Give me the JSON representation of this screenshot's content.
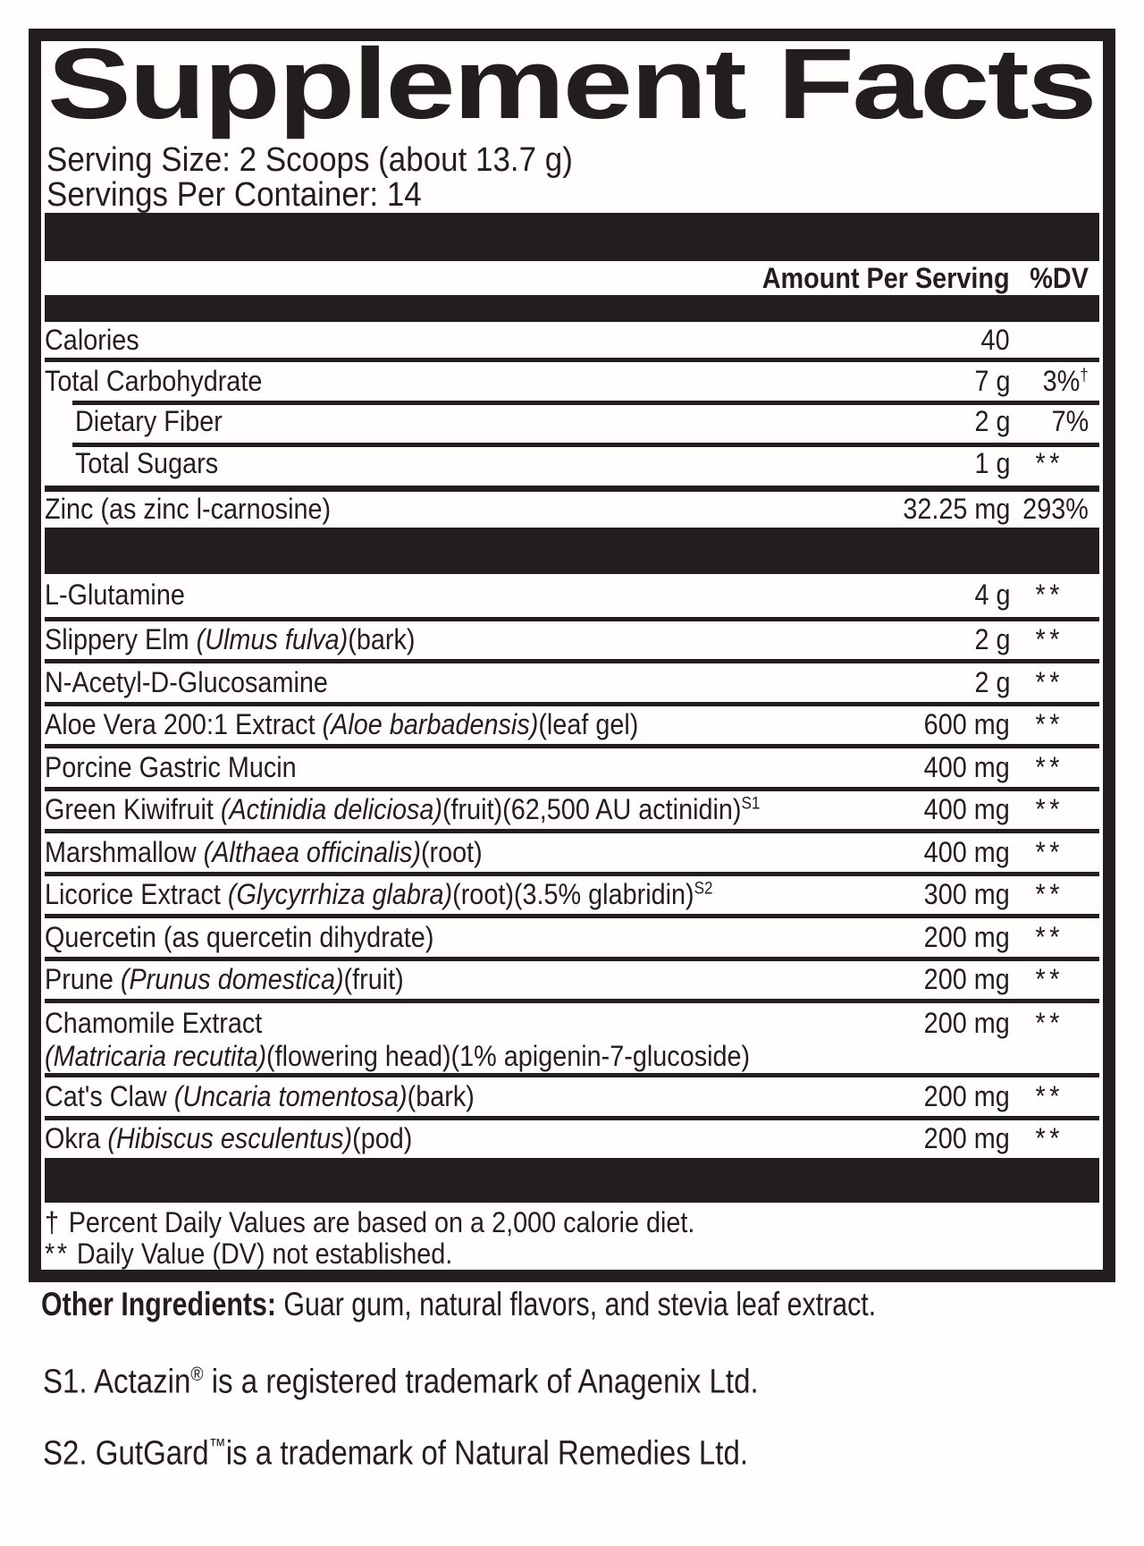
{
  "title": "Supplement Facts",
  "serving": {
    "size": "Serving Size: 2 Scoops (about 13.7 g)",
    "per_container": "Servings Per Container: 14"
  },
  "header": {
    "amount_label": "Amount Per Serving",
    "dv_label": "%DV"
  },
  "nutrients": [
    {
      "segments": [
        {
          "t": "Calories"
        }
      ],
      "amount": "40",
      "dv": "",
      "sep": "none"
    },
    {
      "segments": [
        {
          "t": "Total Carbohydrate"
        }
      ],
      "amount": "7 g",
      "dv": "3%",
      "dv_sup": "†",
      "sep": "full"
    },
    {
      "segments": [
        {
          "t": "Dietary Fiber"
        }
      ],
      "amount": "2 g",
      "dv": "7%",
      "sep": "indent",
      "indent": true
    },
    {
      "segments": [
        {
          "t": "Total Sugars"
        }
      ],
      "amount": "1 g",
      "dv": "**",
      "sep": "indent",
      "indent": true
    },
    {
      "segments": [
        {
          "t": "Zinc (as zinc l-carnosine)"
        }
      ],
      "amount": "32.25 mg",
      "dv": "293%",
      "sep": "thick"
    }
  ],
  "ingredients": [
    {
      "segments": [
        {
          "t": "L-Glutamine"
        }
      ],
      "amount": "4 g",
      "dv": "**",
      "sep": "none"
    },
    {
      "segments": [
        {
          "t": "Slippery Elm "
        },
        {
          "t": "(Ulmus fulva)",
          "style": "i"
        },
        {
          "t": "(bark)"
        }
      ],
      "amount": "2 g",
      "dv": "**",
      "sep": "full"
    },
    {
      "segments": [
        {
          "t": "N-Acetyl-D-Glucosamine"
        }
      ],
      "amount": "2 g",
      "dv": "**",
      "sep": "full"
    },
    {
      "segments": [
        {
          "t": "Aloe Vera 200:1 Extract "
        },
        {
          "t": "(Aloe barbadensis)",
          "style": "i"
        },
        {
          "t": "(leaf gel)"
        }
      ],
      "amount": "600 mg",
      "dv": "**",
      "sep": "full"
    },
    {
      "segments": [
        {
          "t": "Porcine Gastric Mucin"
        }
      ],
      "amount": "400 mg",
      "dv": "**",
      "sep": "full"
    },
    {
      "segments": [
        {
          "t": "Green Kiwifruit "
        },
        {
          "t": "(Actinidia deliciosa)",
          "style": "i"
        },
        {
          "t": "(fruit)(62,500 AU actinidin)"
        },
        {
          "t": "S1",
          "style": "sup"
        }
      ],
      "amount": "400 mg",
      "dv": "**",
      "sep": "full"
    },
    {
      "segments": [
        {
          "t": "Marshmallow "
        },
        {
          "t": "(Althaea officinalis)",
          "style": "i"
        },
        {
          "t": "(root)"
        }
      ],
      "amount": "400 mg",
      "dv": "**",
      "sep": "full"
    },
    {
      "segments": [
        {
          "t": "Licorice Extract "
        },
        {
          "t": "(Glycyrrhiza glabra)",
          "style": "i"
        },
        {
          "t": "(root)(3.5% glabridin)"
        },
        {
          "t": "S2",
          "style": "sup"
        }
      ],
      "amount": "300 mg",
      "dv": "**",
      "sep": "full"
    },
    {
      "segments": [
        {
          "t": "Quercetin (as quercetin dihydrate)"
        }
      ],
      "amount": "200 mg",
      "dv": "**",
      "sep": "full"
    },
    {
      "segments": [
        {
          "t": "Prune "
        },
        {
          "t": "(Prunus domestica)",
          "style": "i"
        },
        {
          "t": "(fruit)"
        }
      ],
      "amount": "200 mg",
      "dv": "**",
      "sep": "full"
    },
    {
      "segments": [
        {
          "t": "Chamomile Extract"
        },
        {
          "br": true
        },
        {
          "t": "(Matricaria recutita)",
          "style": "i"
        },
        {
          "t": "(flowering head)(1% apigenin-7-glucoside)"
        }
      ],
      "amount": "200 mg",
      "dv": "**",
      "sep": "full",
      "tall": true
    },
    {
      "segments": [
        {
          "t": "Cat's Claw "
        },
        {
          "t": "(Uncaria tomentosa)",
          "style": "i"
        },
        {
          "t": "(bark)"
        }
      ],
      "amount": "200 mg",
      "dv": "**",
      "sep": "full"
    },
    {
      "segments": [
        {
          "t": "Okra "
        },
        {
          "t": "(Hibiscus esculentus)",
          "style": "i"
        },
        {
          "t": "(pod)"
        }
      ],
      "amount": "200 mg",
      "dv": "**",
      "sep": "full"
    }
  ],
  "footnotes": {
    "dagger_symbol": "†",
    "dagger_text": "Percent Daily Values are based on a 2,000 calorie diet.",
    "stars_symbol": "**",
    "stars_text": "Daily Value (DV) not established."
  },
  "other_ingredients": {
    "label": "Other Ingredients:",
    "text": " Guar gum, natural flavors, and stevia leaf extract."
  },
  "trademarks": [
    {
      "prefix": "S1. Actazin",
      "symbol": "®",
      "text": " is a registered trademark of Anagenix Ltd."
    },
    {
      "prefix": "S2. GutGard",
      "symbol": "™",
      "text": "is a trademark of Natural Remedies Ltd."
    }
  ],
  "colors": {
    "ink": "#221e1f",
    "background": "#fffefd"
  }
}
